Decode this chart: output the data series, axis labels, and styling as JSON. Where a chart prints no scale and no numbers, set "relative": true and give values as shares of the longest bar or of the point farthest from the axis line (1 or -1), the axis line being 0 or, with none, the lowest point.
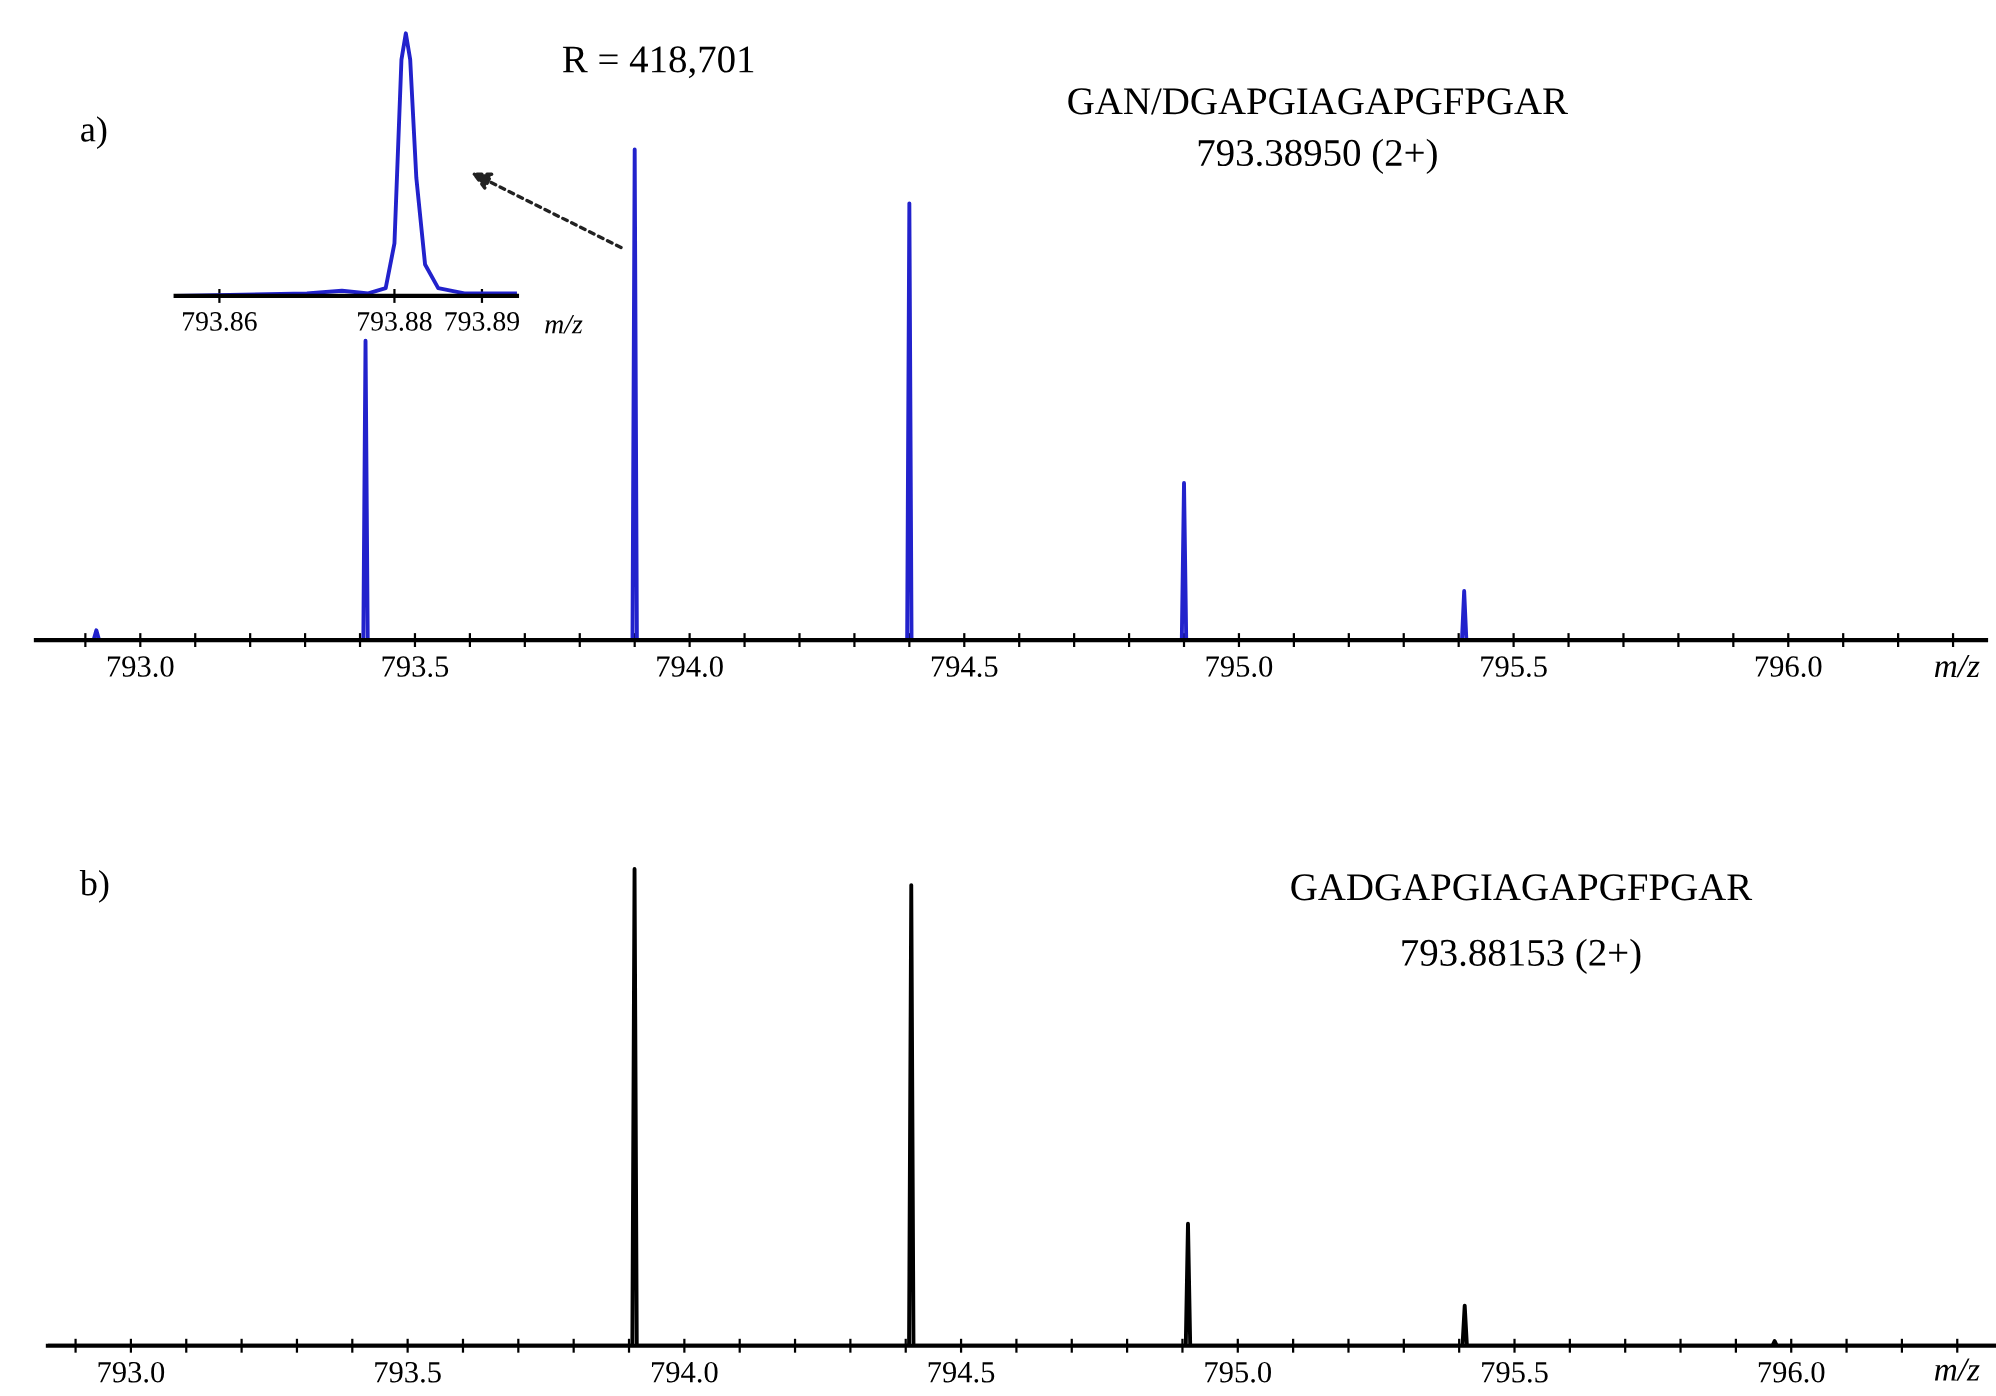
{
  "chart_data": [
    {
      "type": "line",
      "relative": true,
      "xlabel": "m/z",
      "color": "#2222cc",
      "annotations": [
        "a)",
        "R = 418,701",
        "GAN/DGAPGIAGAPGFPGAR",
        "793.38950 (2+)"
      ],
      "x": [
        792.81,
        792.915,
        792.92,
        792.925,
        793.406,
        793.41,
        793.414,
        793.896,
        793.9,
        793.904,
        794.396,
        794.4,
        794.404,
        794.896,
        794.9,
        794.904,
        795.406,
        795.41,
        795.414,
        796.36
      ],
      "values": [
        0,
        0,
        0.02,
        0,
        0,
        0.61,
        0,
        0,
        1.0,
        0,
        0,
        0.89,
        0,
        0,
        0.32,
        0,
        0,
        0.1,
        0,
        0
      ],
      "xlim": [
        792.81,
        796.36
      ],
      "xticks": [
        {
          "value": 792.9,
          "label": null
        },
        {
          "value": 793.0,
          "label": "793.0"
        },
        {
          "value": 793.1,
          "label": null
        },
        {
          "value": 793.2,
          "label": null
        },
        {
          "value": 793.3,
          "label": null
        },
        {
          "value": 793.4,
          "label": null
        },
        {
          "value": 793.5,
          "label": "793.5"
        },
        {
          "value": 793.6,
          "label": null
        },
        {
          "value": 793.7,
          "label": null
        },
        {
          "value": 793.8,
          "label": null
        },
        {
          "value": 793.9,
          "label": null
        },
        {
          "value": 794.0,
          "label": "794.0"
        },
        {
          "value": 794.1,
          "label": null
        },
        {
          "value": 794.2,
          "label": null
        },
        {
          "value": 794.3,
          "label": null
        },
        {
          "value": 794.4,
          "label": null
        },
        {
          "value": 794.5,
          "label": "794.5"
        },
        {
          "value": 794.6,
          "label": null
        },
        {
          "value": 794.7,
          "label": null
        },
        {
          "value": 794.8,
          "label": null
        },
        {
          "value": 794.9,
          "label": null
        },
        {
          "value": 795.0,
          "label": "795.0"
        },
        {
          "value": 795.1,
          "label": null
        },
        {
          "value": 795.2,
          "label": null
        },
        {
          "value": 795.3,
          "label": null
        },
        {
          "value": 795.4,
          "label": null
        },
        {
          "value": 795.5,
          "label": "795.5"
        },
        {
          "value": 795.6,
          "label": null
        },
        {
          "value": 795.7,
          "label": null
        },
        {
          "value": 795.8,
          "label": null
        },
        {
          "value": 795.9,
          "label": null
        },
        {
          "value": 796.0,
          "label": "796.0"
        },
        {
          "value": 796.1,
          "label": null
        },
        {
          "value": 796.2,
          "label": null
        },
        {
          "value": 796.3,
          "label": null
        }
      ]
    },
    {
      "type": "line",
      "relative": true,
      "xlabel": "m/z",
      "color": "#2222cc",
      "x": [
        793.855,
        793.87,
        793.874,
        793.877,
        793.879,
        793.88,
        793.8808,
        793.8813,
        793.8818,
        793.8825,
        793.8835,
        793.885,
        793.888,
        793.894
      ],
      "values": [
        0,
        0.01,
        0.02,
        0.01,
        0.03,
        0.2,
        0.9,
        1.0,
        0.9,
        0.45,
        0.12,
        0.03,
        0.01,
        0.01
      ],
      "xlim": [
        793.855,
        793.894
      ],
      "xticks": [
        {
          "value": 793.86,
          "label": "793.86"
        },
        {
          "value": 793.88,
          "label": "793.88"
        },
        {
          "value": 793.89,
          "label": "793.89"
        }
      ]
    },
    {
      "type": "line",
      "relative": true,
      "xlabel": "m/z",
      "color": "#000000",
      "annotations": [
        "b)",
        "GADGAPGIAGAPGFPGAR",
        "793.88153 (2+)"
      ],
      "x": [
        792.85,
        793.906,
        793.91,
        793.914,
        794.406,
        794.41,
        794.414,
        794.906,
        794.91,
        794.914,
        795.406,
        795.41,
        795.414,
        795.966,
        795.97,
        795.974,
        796.37
      ],
      "values": [
        0,
        0,
        1.0,
        0,
        0,
        0.966,
        0,
        0,
        0.256,
        0,
        0,
        0.084,
        0,
        0,
        0.01,
        0,
        0
      ],
      "xlim": [
        792.85,
        796.37
      ],
      "xticks": [
        {
          "value": 792.9,
          "label": null
        },
        {
          "value": 793.0,
          "label": "793.0"
        },
        {
          "value": 793.1,
          "label": null
        },
        {
          "value": 793.2,
          "label": null
        },
        {
          "value": 793.3,
          "label": null
        },
        {
          "value": 793.4,
          "label": null
        },
        {
          "value": 793.5,
          "label": "793.5"
        },
        {
          "value": 793.6,
          "label": null
        },
        {
          "value": 793.7,
          "label": null
        },
        {
          "value": 793.8,
          "label": null
        },
        {
          "value": 793.9,
          "label": null
        },
        {
          "value": 794.0,
          "label": "794.0"
        },
        {
          "value": 794.1,
          "label": null
        },
        {
          "value": 794.2,
          "label": null
        },
        {
          "value": 794.3,
          "label": null
        },
        {
          "value": 794.4,
          "label": null
        },
        {
          "value": 794.5,
          "label": "794.5"
        },
        {
          "value": 794.6,
          "label": null
        },
        {
          "value": 794.7,
          "label": null
        },
        {
          "value": 794.8,
          "label": null
        },
        {
          "value": 794.9,
          "label": null
        },
        {
          "value": 795.0,
          "label": "795.0"
        },
        {
          "value": 795.1,
          "label": null
        },
        {
          "value": 795.2,
          "label": null
        },
        {
          "value": 795.3,
          "label": null
        },
        {
          "value": 795.4,
          "label": null
        },
        {
          "value": 795.5,
          "label": "795.5"
        },
        {
          "value": 795.6,
          "label": null
        },
        {
          "value": 795.7,
          "label": null
        },
        {
          "value": 795.8,
          "label": null
        },
        {
          "value": 795.9,
          "label": null
        },
        {
          "value": 796.0,
          "label": "796.0"
        },
        {
          "value": 796.1,
          "label": null
        },
        {
          "value": 796.2,
          "label": null
        },
        {
          "value": 796.3,
          "label": null
        }
      ]
    }
  ]
}
